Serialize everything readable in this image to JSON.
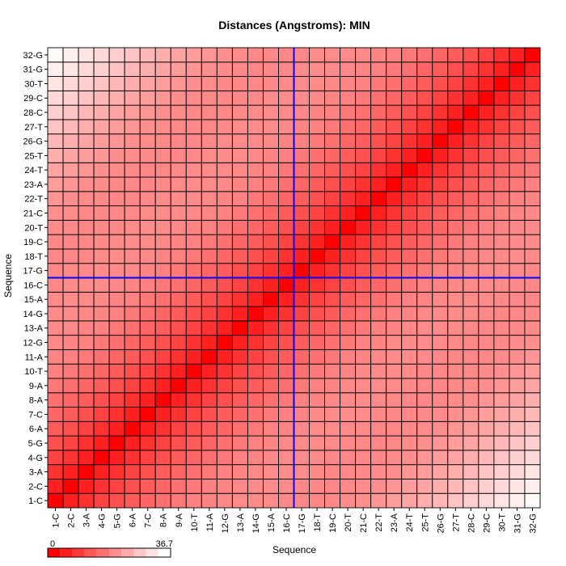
{
  "chart_data": {
    "type": "heatmap",
    "title": "Distances (Angstroms):  MIN",
    "xlabel": "Sequence",
    "ylabel": "Sequence",
    "categories": [
      "1-C",
      "2-C",
      "3-A",
      "4-G",
      "5-G",
      "6-A",
      "7-C",
      "8-A",
      "9-A",
      "10-T",
      "11-A",
      "12-G",
      "13-A",
      "14-G",
      "15-A",
      "16-C",
      "17-G",
      "18-T",
      "19-C",
      "20-T",
      "21-C",
      "22-T",
      "23-A",
      "24-T",
      "25-T",
      "26-G",
      "27-T",
      "28-C",
      "29-C",
      "30-T",
      "31-G",
      "32-G"
    ],
    "value_range": [
      0,
      36.7
    ],
    "colorscale": {
      "low": "#ff0000",
      "high": "#ffffff"
    },
    "legend": {
      "min_label": "0",
      "max_label": "36.7",
      "placement": "bottom-left"
    },
    "highlight": {
      "x": "16-C",
      "y": "16-C",
      "color": "#0000ff"
    },
    "grid": true,
    "symmetric": true,
    "diagonal_value": 0,
    "values_by_offset": [
      0,
      4.6,
      7.2,
      9.5,
      11.5,
      13.2,
      14.8,
      16.2,
      17.4,
      18.5,
      19.2,
      19.7,
      19.9,
      20.0,
      19.9,
      19.7,
      19.5,
      19.4,
      19.6,
      20.0,
      20.6,
      21.4,
      22.4,
      23.6,
      25.0,
      26.4,
      28.0,
      29.6,
      31.2,
      32.8,
      34.4,
      36.0
    ]
  }
}
